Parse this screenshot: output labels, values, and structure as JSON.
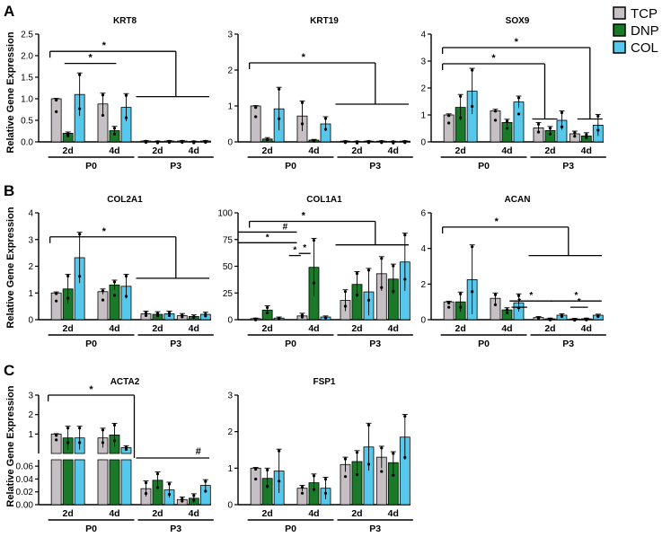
{
  "figure": {
    "ylabel": "Relative Gene Expression",
    "panel_letters": [
      "A",
      "B",
      "C"
    ],
    "legend": [
      {
        "label": "TCP",
        "color": "#c6c0c4"
      },
      {
        "label": "DNP",
        "color": "#1a7a2a"
      },
      {
        "label": "COL",
        "color": "#56c8ec"
      }
    ]
  },
  "chart_data": [
    {
      "type": "bar",
      "title": "KRT8",
      "ylabel": "Relative Gene Expression",
      "ylim": [
        0,
        2.5
      ],
      "ticks": [
        "0.0",
        "0.5",
        "1.0",
        "1.5",
        "2.0",
        "2.5"
      ],
      "groups": [
        "2d",
        "4d",
        "2d",
        "4d"
      ],
      "periods": [
        "P0",
        "P3"
      ],
      "series_names": [
        "TCP",
        "DNP",
        "COL"
      ],
      "values": [
        [
          1.0,
          0.2,
          1.1
        ],
        [
          0.88,
          0.26,
          0.8
        ],
        [
          0.02,
          0.01,
          0.02
        ],
        [
          0.02,
          0.01,
          0.02
        ]
      ],
      "errors": [
        [
          0.01,
          0.03,
          0.5
        ],
        [
          0.25,
          0.1,
          0.32
        ],
        [
          0.01,
          0.01,
          0.01
        ],
        [
          0.01,
          0.01,
          0.01
        ]
      ],
      "annotations": [
        "*",
        "*"
      ]
    },
    {
      "type": "bar",
      "title": "KRT19",
      "ylim": [
        0,
        3
      ],
      "ticks": [
        "0",
        "1",
        "2",
        "3"
      ],
      "groups": [
        "2d",
        "4d",
        "2d",
        "4d"
      ],
      "periods": [
        "P0",
        "P3"
      ],
      "series_names": [
        "TCP",
        "DNP",
        "COL"
      ],
      "values": [
        [
          1.0,
          0.08,
          0.92
        ],
        [
          0.72,
          0.05,
          0.5
        ],
        [
          0.02,
          0.01,
          0.02
        ],
        [
          0.02,
          0.01,
          0.02
        ]
      ],
      "errors": [
        [
          0.01,
          0.04,
          0.6
        ],
        [
          0.42,
          0.02,
          0.2
        ],
        [
          0.01,
          0.01,
          0.01
        ],
        [
          0.01,
          0.01,
          0.01
        ]
      ],
      "annotations": [
        "*"
      ]
    },
    {
      "type": "bar",
      "title": "SOX9",
      "ylim": [
        0,
        4
      ],
      "ticks": [
        "0",
        "1",
        "2",
        "3",
        "4"
      ],
      "groups": [
        "2d",
        "4d",
        "2d",
        "4d"
      ],
      "periods": [
        "P0",
        "P3"
      ],
      "series_names": [
        "TCP",
        "DNP",
        "COL"
      ],
      "values": [
        [
          1.0,
          1.28,
          1.88
        ],
        [
          1.15,
          0.72,
          1.48
        ],
        [
          0.52,
          0.42,
          0.8
        ],
        [
          0.3,
          0.22,
          0.62
        ]
      ],
      "errors": [
        [
          0.04,
          0.48,
          0.85
        ],
        [
          0.06,
          0.12,
          0.22
        ],
        [
          0.2,
          0.15,
          0.35
        ],
        [
          0.1,
          0.12,
          0.4
        ]
      ],
      "annotations": [
        "*",
        "*"
      ]
    },
    {
      "type": "bar",
      "title": "COL2A1",
      "ylabel": "Relative Gene Expression",
      "ylim": [
        0,
        4
      ],
      "ticks": [
        "0",
        "1",
        "2",
        "3",
        "4"
      ],
      "groups": [
        "2d",
        "4d",
        "2d",
        "4d"
      ],
      "periods": [
        "P0",
        "P3"
      ],
      "series_names": [
        "TCP",
        "DNP",
        "COL"
      ],
      "values": [
        [
          1.0,
          1.15,
          2.32
        ],
        [
          1.05,
          1.3,
          1.25
        ],
        [
          0.22,
          0.2,
          0.22
        ],
        [
          0.15,
          0.12,
          0.2
        ]
      ],
      "errors": [
        [
          0.04,
          0.55,
          0.95
        ],
        [
          0.1,
          0.18,
          0.45
        ],
        [
          0.1,
          0.1,
          0.1
        ],
        [
          0.08,
          0.06,
          0.08
        ]
      ],
      "annotations": [
        "*"
      ]
    },
    {
      "type": "bar",
      "title": "COL1A1",
      "ylim": [
        0,
        100
      ],
      "ticks": [
        "0",
        "25",
        "50",
        "75",
        "100"
      ],
      "groups": [
        "2d",
        "4d",
        "2d",
        "4d"
      ],
      "periods": [
        "P0",
        "P3"
      ],
      "series_names": [
        "TCP",
        "DNP",
        "COL"
      ],
      "values": [
        [
          1.0,
          9.0,
          1.5
        ],
        [
          3.5,
          49.0,
          2.5
        ],
        [
          18.0,
          33.0,
          26.0
        ],
        [
          43.0,
          38.0,
          54.0
        ]
      ],
      "errors": [
        [
          0.5,
          4.0,
          1.0
        ],
        [
          2.5,
          27.0,
          1.0
        ],
        [
          10.0,
          12.0,
          22.0
        ],
        [
          16.0,
          14.0,
          27.0
        ]
      ],
      "annotations": [
        "*",
        "*",
        "#",
        "*",
        "*"
      ]
    },
    {
      "type": "bar",
      "title": "ACAN",
      "ylim": [
        0,
        6
      ],
      "ticks": [
        "0",
        "2",
        "4",
        "6"
      ],
      "groups": [
        "2d",
        "4d",
        "2d",
        "4d"
      ],
      "periods": [
        "P0",
        "P3"
      ],
      "series_names": [
        "TCP",
        "DNP",
        "COL"
      ],
      "values": [
        [
          1.0,
          1.0,
          2.25
        ],
        [
          1.2,
          0.55,
          0.95
        ],
        [
          0.12,
          0.05,
          0.25
        ],
        [
          0.04,
          0.05,
          0.25
        ]
      ],
      "errors": [
        [
          0.04,
          0.55,
          1.95
        ],
        [
          0.3,
          0.12,
          0.5
        ],
        [
          0.06,
          0.04,
          0.08
        ],
        [
          0.03,
          0.04,
          0.06
        ]
      ],
      "annotations": [
        "*",
        "*",
        "*",
        "*",
        "*"
      ]
    },
    {
      "type": "bar",
      "title": "ACTA2",
      "ylabel": "Relative Gene Expression",
      "axis_break": true,
      "ticks_upper": [
        "0",
        "1",
        "2",
        "3"
      ],
      "ticks_lower": [
        "0.00",
        "0.02",
        "0.04",
        "0.06"
      ],
      "groups": [
        "2d",
        "4d",
        "2d",
        "4d"
      ],
      "periods": [
        "P0",
        "P3"
      ],
      "series_names": [
        "TCP",
        "DNP",
        "COL"
      ],
      "values": [
        [
          1.0,
          0.8,
          0.8
        ],
        [
          0.8,
          0.95,
          0.3
        ],
        [
          0.025,
          0.038,
          0.023
        ],
        [
          0.008,
          0.01,
          0.03
        ]
      ],
      "errors": [
        [
          0.02,
          0.6,
          0.6
        ],
        [
          0.5,
          0.6,
          0.1
        ],
        [
          0.012,
          0.013,
          0.012
        ],
        [
          0.004,
          0.007,
          0.009
        ]
      ],
      "annotations": [
        "*",
        "#"
      ]
    },
    {
      "type": "bar",
      "title": "FSP1",
      "ylim": [
        0,
        3
      ],
      "ticks": [
        "0",
        "1",
        "2",
        "3"
      ],
      "groups": [
        "2d",
        "4d",
        "2d",
        "4d"
      ],
      "periods": [
        "P0",
        "P3"
      ],
      "series_names": [
        "TCP",
        "DNP",
        "COL"
      ],
      "values": [
        [
          1.0,
          0.72,
          0.92
        ],
        [
          0.45,
          0.6,
          0.45
        ],
        [
          1.1,
          1.18,
          1.58
        ],
        [
          1.3,
          1.15,
          1.85
        ]
      ],
      "errors": [
        [
          0.02,
          0.28,
          0.6
        ],
        [
          0.08,
          0.24,
          0.3
        ],
        [
          0.2,
          0.3,
          0.65
        ],
        [
          0.3,
          0.3,
          0.62
        ]
      ],
      "annotations": []
    }
  ]
}
